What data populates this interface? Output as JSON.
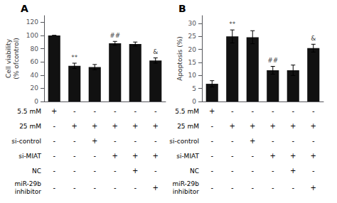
{
  "chart_data": [
    {
      "type": "bar",
      "title": "A",
      "ylabel": "Cell viability\n(% ofcontrol)",
      "categories": [
        null,
        null,
        null,
        null,
        null,
        null
      ],
      "values": [
        100,
        54,
        52,
        88,
        87,
        62
      ],
      "errors": [
        0,
        4,
        4,
        3,
        3,
        4
      ],
      "color": "#111111",
      "ylim": [
        0,
        130
      ],
      "yticks": [
        0,
        20,
        40,
        60,
        80,
        100,
        120
      ],
      "grid": false,
      "tick_labels": "y",
      "annotations": [
        {
          "bar": 1,
          "text": "**"
        },
        {
          "bar": 3,
          "text": "##"
        },
        {
          "bar": 5,
          "text": "&"
        }
      ],
      "table": {
        "row_labels": [
          "5.5 mM",
          "25 mM",
          "si-control",
          "si-MIAT",
          "NC",
          "miR-29b\ninhibitor"
        ],
        "row_signs": [
          [
            "+",
            "-",
            "-",
            "-",
            "-",
            "-"
          ],
          [
            "-",
            "+",
            "+",
            "+",
            "+",
            "+"
          ],
          [
            "-",
            "-",
            "+",
            "-",
            "-",
            "-"
          ],
          [
            "-",
            "-",
            "-",
            "+",
            "+",
            "+"
          ],
          [
            "-",
            "-",
            "-",
            "-",
            "+",
            "-"
          ],
          [
            "-",
            "-",
            "-",
            "-",
            "-",
            "+"
          ]
        ]
      }
    },
    {
      "type": "bar",
      "title": "B",
      "ylabel": "Apoptosis (%)",
      "categories": [
        null,
        null,
        null,
        null,
        null,
        null
      ],
      "values": [
        6.8,
        25.0,
        24.7,
        12.0,
        12.0,
        20.5
      ],
      "errors": [
        1.2,
        2.5,
        2.5,
        1.5,
        2.0,
        1.5
      ],
      "color": "#111111",
      "ylim": [
        0,
        33
      ],
      "yticks": [
        0,
        5,
        10,
        15,
        20,
        25,
        30
      ],
      "grid": false,
      "tick_labels": "y",
      "annotations": [
        {
          "bar": 1,
          "text": "**"
        },
        {
          "bar": 3,
          "text": "##"
        },
        {
          "bar": 5,
          "text": "&"
        }
      ],
      "table": {
        "row_labels": [
          "5.5 mM",
          "25 mM",
          "si-control",
          "si-MIAT",
          "NC",
          "miR-29b\ninhibitor"
        ],
        "row_signs": [
          [
            "+",
            "-",
            "-",
            "-",
            "-",
            "-"
          ],
          [
            "-",
            "+",
            "+",
            "+",
            "+",
            "+"
          ],
          [
            "-",
            "-",
            "+",
            "-",
            "-",
            "-"
          ],
          [
            "-",
            "-",
            "-",
            "+",
            "+",
            "+"
          ],
          [
            "-",
            "-",
            "-",
            "-",
            "+",
            "-"
          ],
          [
            "-",
            "-",
            "-",
            "-",
            "-",
            "+"
          ]
        ]
      }
    }
  ]
}
